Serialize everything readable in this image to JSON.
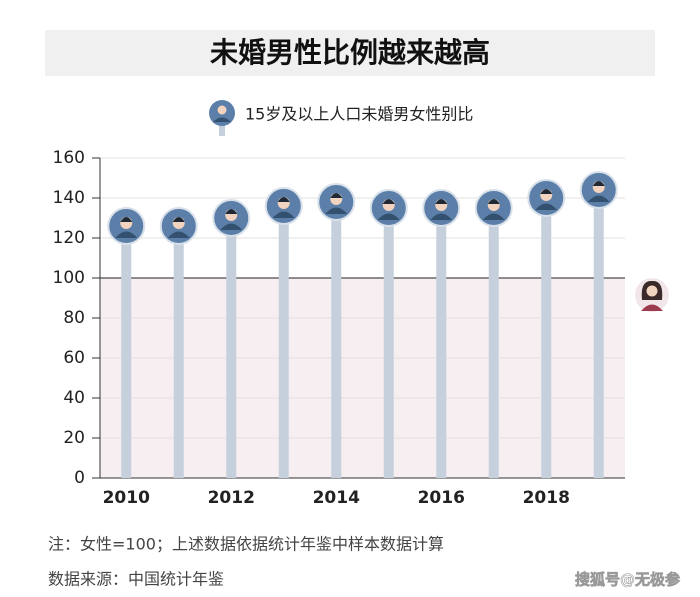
{
  "chart_data": {
    "type": "lollipop",
    "title": "未婚男性比例越来越高",
    "legend_label": "15岁及以上人口未婚男女性别比",
    "categories": [
      "2010",
      null,
      "2012",
      null,
      "2014",
      null,
      "2016",
      null,
      "2018",
      null
    ],
    "values": [
      126,
      126,
      130,
      136,
      138,
      135,
      135,
      135,
      140,
      144
    ],
    "color": "#5b7fa8",
    "stem_color": "#c5d0dc",
    "ylim": [
      0,
      160
    ],
    "yticks": [
      0,
      20,
      40,
      60,
      80,
      100,
      120,
      140,
      160
    ],
    "reference_line": 100,
    "grid": true,
    "notes": [
      "注：女性=100；上述数据依据统计年鉴中样本数据计算",
      "数据来源：中国统计年鉴"
    ],
    "watermark": "搜狐号@无极参"
  }
}
